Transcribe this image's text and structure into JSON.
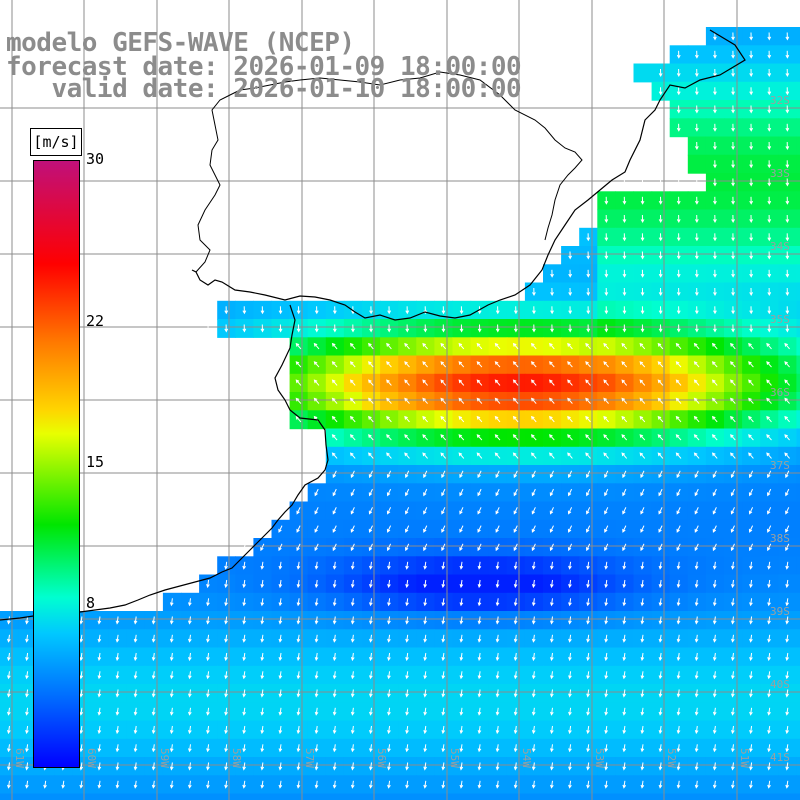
{
  "title": {
    "line1": "modelo GEFS-WAVE (NCEP)",
    "line2": "forecast date: 2026-01-09 18:00:00",
    "line3": "   valid date: 2026-01-10 18:00:00"
  },
  "legend": {
    "unit": "[m/s]",
    "ticks": [
      "30",
      "22",
      "15",
      "8"
    ],
    "tick_values": [
      30,
      22,
      15,
      8
    ],
    "range": [
      0,
      30
    ],
    "colors": [
      "#c0107a",
      "#ff0000",
      "#ff7a00",
      "#ffd400",
      "#00e600",
      "#00ffd0",
      "#00c8ff",
      "#0070ff",
      "#0000ff"
    ]
  },
  "axes": {
    "lon_labels": [
      "61W",
      "60W",
      "59W",
      "58W",
      "57W",
      "56W",
      "55W",
      "54W",
      "53W",
      "52W",
      "51W"
    ],
    "lat_labels": [
      "32S",
      "33S",
      "34S",
      "35S",
      "36S",
      "37S",
      "38S",
      "39S",
      "40S",
      "41S"
    ],
    "lon_range": [
      -61.5,
      -50.5
    ],
    "lat_range": [
      -31.5,
      -41.7
    ]
  },
  "colors": {
    "title_gray": "#8c8c8c",
    "grid": "#8c8c8c",
    "arrow": "#ffffff",
    "coast": "#000000"
  }
}
